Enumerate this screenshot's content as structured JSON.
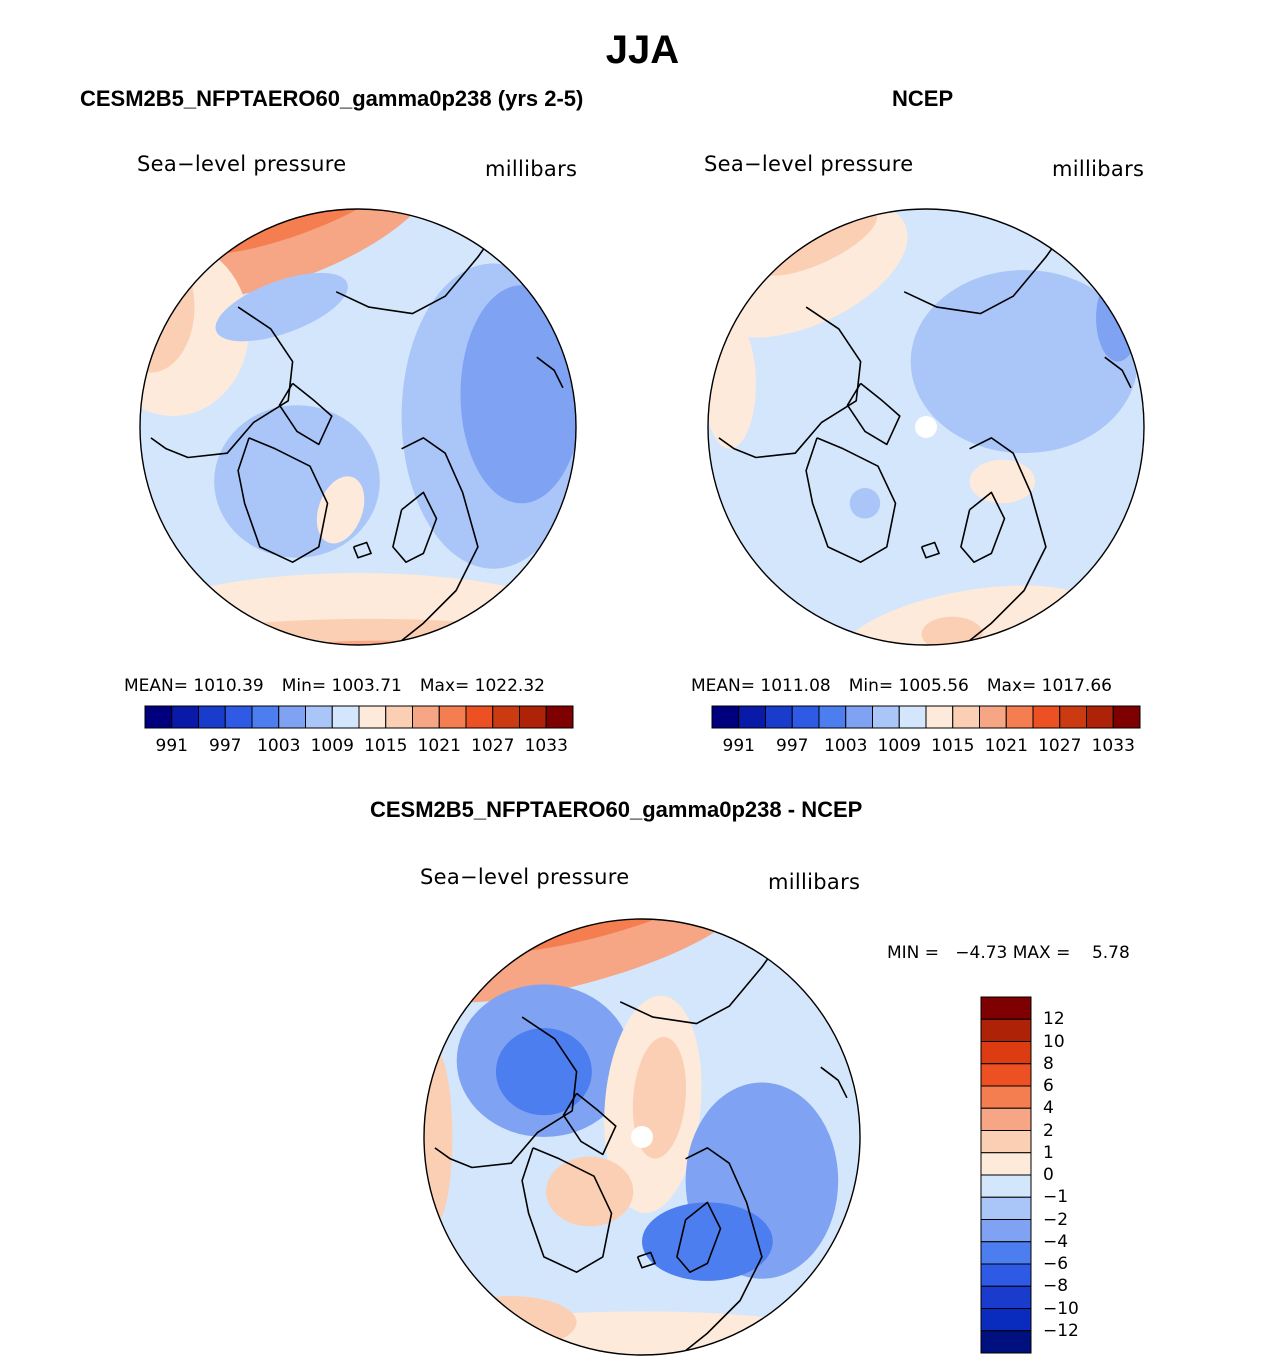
{
  "title": "JJA",
  "panels": {
    "model": {
      "title": "CESM2B5_NFPTAERO60_gamma0p238 (yrs 2-5)",
      "variable": "Sea−level pressure",
      "units": "millibars",
      "mean_label": "MEAN=",
      "mean": "1010.39",
      "min_label": "Min=",
      "min": "1003.71",
      "max_label": "Max=",
      "max": "1022.32"
    },
    "obs": {
      "title": "NCEP",
      "variable": "Sea−level pressure",
      "units": "millibars",
      "mean_label": "MEAN=",
      "mean": "1011.08",
      "min_label": "Min=",
      "min": "1005.56",
      "max_label": "Max=",
      "max": "1017.66"
    },
    "diff": {
      "title": "CESM2B5_NFPTAERO60_gamma0p238 - NCEP",
      "variable": "Sea−level pressure",
      "units": "millibars",
      "minmax_text": "MIN =   −4.73 MAX =    5.78"
    }
  },
  "colorbar_abs": {
    "colors": [
      "#00007f",
      "#0a1aa8",
      "#1a3ccc",
      "#2e5ae6",
      "#4d7ef0",
      "#7fa3f2",
      "#aac6f8",
      "#d4e6fb",
      "#fdeadb",
      "#fbcfb3",
      "#f6a585",
      "#f57e50",
      "#ec5023",
      "#cc3a12",
      "#ae2208",
      "#7f0000"
    ],
    "labels": [
      "991",
      "997",
      "1003",
      "1009",
      "1015",
      "1021",
      "1027",
      "1033"
    ]
  },
  "colorbar_diff": {
    "colors": [
      "#7f0000",
      "#ae2208",
      "#dd3b11",
      "#ec5023",
      "#f57e50",
      "#f6a585",
      "#fbcfb3",
      "#fdeadb",
      "#d4e6fb",
      "#aac6f8",
      "#7fa3f2",
      "#4d7ef0",
      "#2e5ae6",
      "#1a3ccc",
      "#0a2cbe",
      "#00107f"
    ],
    "labels": [
      "12",
      "10",
      "8",
      "6",
      "4",
      "2",
      "1",
      "0",
      "−1",
      "−2",
      "−4",
      "−6",
      "−8",
      "−10",
      "−12"
    ]
  },
  "fields": {
    "model": {
      "base": "#d4e6fb",
      "blobs": [
        {
          "c": "#f6a585",
          "u": -0.35,
          "v": -0.95,
          "rx": 0.75,
          "ry": 0.28,
          "rot": -20
        },
        {
          "c": "#f57e50",
          "u": -0.3,
          "v": -1.02,
          "rx": 0.55,
          "ry": 0.14,
          "rot": -20
        },
        {
          "c": "#fdeadb",
          "u": -0.85,
          "v": -0.45,
          "rx": 0.35,
          "ry": 0.4,
          "rot": 0
        },
        {
          "c": "#fbcfb3",
          "u": -0.95,
          "v": -0.55,
          "rx": 0.2,
          "ry": 0.3,
          "rot": 0
        },
        {
          "c": "#fdeadb",
          "u": 0.0,
          "v": 0.95,
          "rx": 1.1,
          "ry": 0.28,
          "rot": 0
        },
        {
          "c": "#fbcfb3",
          "u": 0.05,
          "v": 1.0,
          "rx": 0.95,
          "ry": 0.12,
          "rot": 0
        },
        {
          "c": "#f6a585",
          "u": 0.1,
          "v": 1.04,
          "rx": 0.5,
          "ry": 0.06,
          "rot": 0
        },
        {
          "c": "#aac6f8",
          "u": 0.62,
          "v": -0.05,
          "rx": 0.42,
          "ry": 0.7,
          "rot": 0
        },
        {
          "c": "#7fa3f2",
          "u": 0.75,
          "v": -0.15,
          "rx": 0.28,
          "ry": 0.5,
          "rot": 0
        },
        {
          "c": "#aac6f8",
          "u": -0.28,
          "v": 0.25,
          "rx": 0.38,
          "ry": 0.35,
          "rot": 0
        },
        {
          "c": "#aac6f8",
          "u": -0.35,
          "v": -0.55,
          "rx": 0.32,
          "ry": 0.12,
          "rot": -20
        },
        {
          "c": "#fdeadb",
          "u": -0.08,
          "v": 0.38,
          "rx": 0.1,
          "ry": 0.16,
          "rot": 20
        }
      ]
    },
    "obs": {
      "base": "#d4e6fb",
      "blobs": [
        {
          "c": "#fdeadb",
          "u": -0.55,
          "v": -0.72,
          "rx": 0.5,
          "ry": 0.25,
          "rot": -25
        },
        {
          "c": "#fbcfb3",
          "u": -0.5,
          "v": -0.85,
          "rx": 0.3,
          "ry": 0.1,
          "rot": -25
        },
        {
          "c": "#fdeadb",
          "u": -0.9,
          "v": -0.2,
          "rx": 0.12,
          "ry": 0.3,
          "rot": 0
        },
        {
          "c": "#aac6f8",
          "u": 0.45,
          "v": -0.3,
          "rx": 0.52,
          "ry": 0.42,
          "rot": 0
        },
        {
          "c": "#7fa3f2",
          "u": 0.88,
          "v": -0.5,
          "rx": 0.1,
          "ry": 0.2,
          "rot": 0
        },
        {
          "c": "#fdeadb",
          "u": 0.2,
          "v": 0.95,
          "rx": 0.6,
          "ry": 0.2,
          "rot": -10
        },
        {
          "c": "#fbcfb3",
          "u": 0.12,
          "v": 0.95,
          "rx": 0.14,
          "ry": 0.08,
          "rot": 0
        },
        {
          "c": "#fdeadb",
          "u": 0.35,
          "v": 0.25,
          "rx": 0.15,
          "ry": 0.1,
          "rot": 0
        },
        {
          "c": "#aac6f8",
          "u": -0.28,
          "v": 0.35,
          "rx": 0.07,
          "ry": 0.07,
          "rot": 0
        }
      ]
    },
    "diff": {
      "base": "#d4e6fb",
      "blobs": [
        {
          "c": "#f6a585",
          "u": -0.3,
          "v": -0.9,
          "rx": 0.8,
          "ry": 0.2,
          "rot": -15
        },
        {
          "c": "#f57e50",
          "u": -0.2,
          "v": -1.0,
          "rx": 0.5,
          "ry": 0.08,
          "rot": -15
        },
        {
          "c": "#7fa3f2",
          "u": -0.45,
          "v": -0.35,
          "rx": 0.4,
          "ry": 0.35,
          "rot": 0
        },
        {
          "c": "#4d7ef0",
          "u": -0.45,
          "v": -0.3,
          "rx": 0.22,
          "ry": 0.2,
          "rot": 0
        },
        {
          "c": "#fdeadb",
          "u": 0.05,
          "v": -0.15,
          "rx": 0.22,
          "ry": 0.5,
          "rot": 5
        },
        {
          "c": "#fbcfb3",
          "u": 0.08,
          "v": -0.18,
          "rx": 0.12,
          "ry": 0.28,
          "rot": 5
        },
        {
          "c": "#f57e50",
          "u": -0.24,
          "v": 0.25,
          "rx": 0.12,
          "ry": 0.1,
          "rot": 0
        },
        {
          "c": "#fbcfb3",
          "u": -0.24,
          "v": 0.25,
          "rx": 0.2,
          "ry": 0.16,
          "rot": 0
        },
        {
          "c": "#7fa3f2",
          "u": 0.55,
          "v": 0.2,
          "rx": 0.35,
          "ry": 0.45,
          "rot": 0
        },
        {
          "c": "#4d7ef0",
          "u": 0.3,
          "v": 0.48,
          "rx": 0.3,
          "ry": 0.18,
          "rot": 0
        },
        {
          "c": "#fdeadb",
          "u": 0.0,
          "v": 0.92,
          "rx": 0.9,
          "ry": 0.12,
          "rot": 0
        },
        {
          "c": "#fbcfb3",
          "u": -0.6,
          "v": 0.85,
          "rx": 0.3,
          "ry": 0.12,
          "rot": 0
        },
        {
          "c": "#fbcfb3",
          "u": -0.95,
          "v": 0.0,
          "rx": 0.08,
          "ry": 0.4,
          "rot": 0
        }
      ]
    }
  }
}
